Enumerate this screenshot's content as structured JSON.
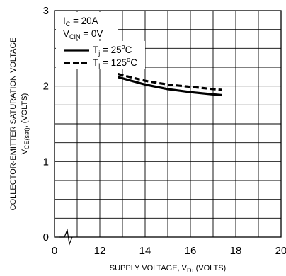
{
  "chart_data": {
    "type": "line",
    "conditions": {
      "ic": {
        "symbol": "I",
        "subscript": "C",
        "value": " = 20A"
      },
      "vcin": {
        "symbol": "V",
        "subscript": "CIN",
        "value": " = 0V"
      }
    },
    "xlabel": {
      "main": "SUPPLY VOLTAGE, V",
      "subscript": "D",
      "suffix": ", (VOLTS)"
    },
    "ylabel": {
      "line1": "COLLECTOR-EMITTER SATURATION VOLTAGE",
      "main": "V",
      "subscript": "CE(sat)",
      "suffix": ", (VOLTS)"
    },
    "xlim": [
      10,
      20
    ],
    "ylim": [
      0,
      3
    ],
    "x_axis_break": true,
    "x_ticks": [
      "0",
      "12",
      "14",
      "16",
      "18",
      "20"
    ],
    "y_ticks": [
      "0",
      "1",
      "2",
      "3"
    ],
    "grid": true,
    "legend_position": "top-left",
    "series": [
      {
        "name": {
          "symbol": "T",
          "subscript": "j",
          "value": " = 25",
          "superscript": "o",
          "unit": "C"
        },
        "style": "solid",
        "color": "#000000",
        "points": [
          [
            12.8,
            2.12
          ],
          [
            14,
            2.02
          ],
          [
            15,
            1.96
          ],
          [
            16,
            1.92
          ],
          [
            17,
            1.89
          ],
          [
            17.4,
            1.88
          ]
        ]
      },
      {
        "name": {
          "symbol": "T",
          "subscript": "j",
          "value": " = 125",
          "superscript": "o",
          "unit": "C"
        },
        "style": "dashed",
        "color": "#000000",
        "points": [
          [
            12.8,
            2.16
          ],
          [
            14,
            2.07
          ],
          [
            15,
            2.02
          ],
          [
            16,
            1.99
          ],
          [
            17,
            1.96
          ],
          [
            17.4,
            1.95
          ]
        ]
      }
    ]
  }
}
